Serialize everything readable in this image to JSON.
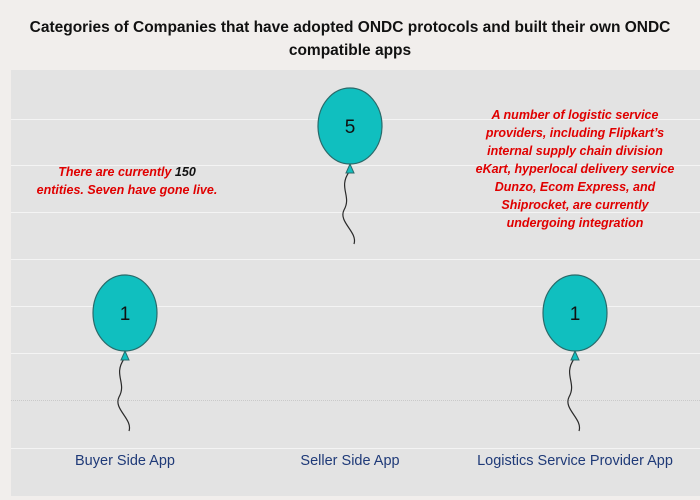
{
  "chart_data": {
    "type": "scatter",
    "title_lines": [
      "Categories of Companies that have adopted ONDC protocols and built their own ONDC",
      "compatible apps"
    ],
    "categories": [
      "Buyer Side App",
      "Seller Side App",
      "Logistics Service Provider App"
    ],
    "values": [
      1,
      5,
      1
    ],
    "ylim": [
      0,
      7
    ],
    "marker": "balloon",
    "colors": {
      "balloon_fill": "#10bfbf",
      "balloon_stroke": "#2b6a6a",
      "annotation": "#e00000",
      "axis_label": "#1f3a78"
    },
    "annotations": [
      {
        "category": "Buyer Side App",
        "text_before": "There are currently ",
        "number": "150",
        "text_after_line1": "",
        "line2": "entities. Seven have gone live."
      },
      {
        "category": "Logistics Service Provider App",
        "lines": [
          "A number of logistic service",
          "providers, including Flipkart’s",
          "internal supply chain division",
          "eKart, hyperlocal delivery service",
          "Dunzo, Ecom Express, and",
          "Shiprocket, are currently",
          "undergoing integration"
        ]
      }
    ]
  }
}
